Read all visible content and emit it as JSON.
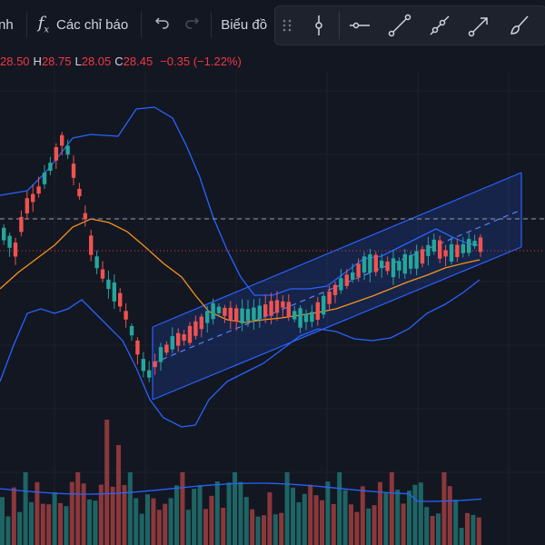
{
  "toolbar": {
    "cut_label": "nh",
    "indicators_label": "Các chỉ báo",
    "chart_label": "Biểu đồ"
  },
  "ohlc": {
    "open": "28.50",
    "high_label": "H",
    "high": "28.75",
    "low_label": "L",
    "low": "28.05",
    "close_label": "C",
    "close": "28.45",
    "change": "−0.35 (−1.22%)"
  },
  "colors": {
    "bg": "#131722",
    "up": "#26a69a",
    "down": "#ef5350",
    "bollinger": "#2962ff",
    "ma": "#f7931a",
    "channel": "#2962ff",
    "price_line": "#f23645"
  },
  "tools": [
    "drag-handle-icon",
    "cursor-line-icon",
    "horizontal-line-icon",
    "trend-line-icon",
    "ray-icon",
    "arrow-icon",
    "brush-icon"
  ]
}
